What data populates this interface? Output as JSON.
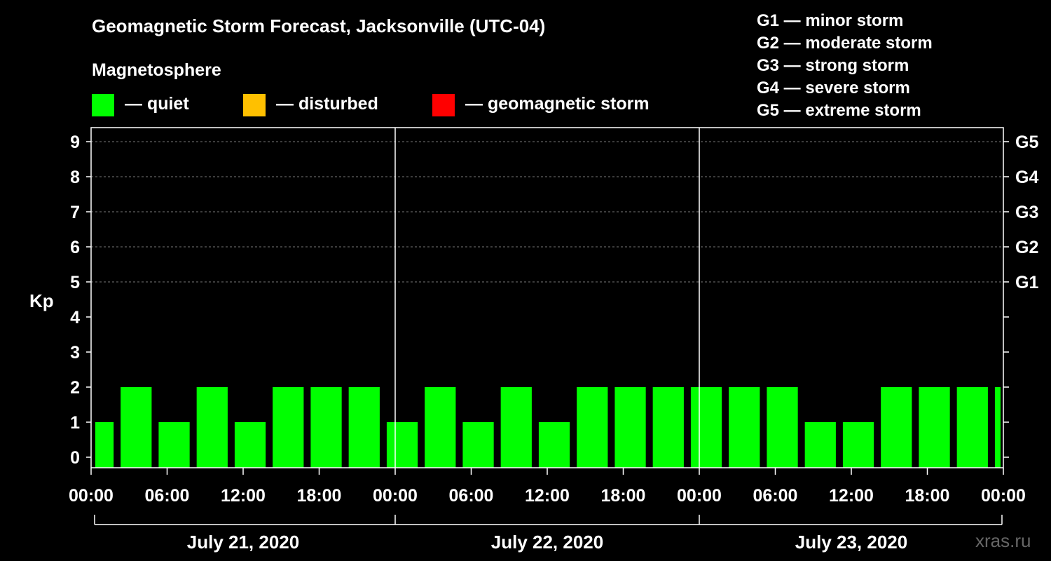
{
  "chart_data": {
    "type": "bar",
    "title": "Geomagnetic Storm Forecast, Jacksonville (UTC-04)",
    "ylabel": "Kp",
    "ylim": [
      0,
      9
    ],
    "yticks": [
      "0",
      "1",
      "2",
      "3",
      "4",
      "5",
      "6",
      "7",
      "8",
      "9"
    ],
    "y_right_labels": [
      {
        "kp": 5,
        "label": "G1"
      },
      {
        "kp": 6,
        "label": "G2"
      },
      {
        "kp": 7,
        "label": "G3"
      },
      {
        "kp": 8,
        "label": "G4"
      },
      {
        "kp": 9,
        "label": "G5"
      }
    ],
    "x_range_hours": [
      0,
      72
    ],
    "xticks": [
      {
        "hour": 0,
        "label": "00:00"
      },
      {
        "hour": 6,
        "label": "06:00"
      },
      {
        "hour": 12,
        "label": "12:00"
      },
      {
        "hour": 18,
        "label": "18:00"
      },
      {
        "hour": 24,
        "label": "00:00"
      },
      {
        "hour": 30,
        "label": "06:00"
      },
      {
        "hour": 36,
        "label": "12:00"
      },
      {
        "hour": 42,
        "label": "18:00"
      },
      {
        "hour": 48,
        "label": "00:00"
      },
      {
        "hour": 54,
        "label": "06:00"
      },
      {
        "hour": 60,
        "label": "12:00"
      },
      {
        "hour": 66,
        "label": "18:00"
      },
      {
        "hour": 72,
        "label": "00:00"
      }
    ],
    "days": [
      {
        "label": "July 21, 2020",
        "start_hour": 0,
        "end_hour": 24
      },
      {
        "label": "July 22, 2020",
        "start_hour": 24,
        "end_hour": 48
      },
      {
        "label": "July 23, 2020",
        "start_hour": 48,
        "end_hour": 72
      }
    ],
    "bars": [
      {
        "start_hour": 0,
        "end_hour": 2,
        "kp": 1
      },
      {
        "start_hour": 2,
        "end_hour": 5,
        "kp": 2
      },
      {
        "start_hour": 5,
        "end_hour": 8,
        "kp": 1
      },
      {
        "start_hour": 8,
        "end_hour": 11,
        "kp": 2
      },
      {
        "start_hour": 11,
        "end_hour": 14,
        "kp": 1
      },
      {
        "start_hour": 14,
        "end_hour": 17,
        "kp": 2
      },
      {
        "start_hour": 17,
        "end_hour": 20,
        "kp": 2
      },
      {
        "start_hour": 20,
        "end_hour": 23,
        "kp": 2
      },
      {
        "start_hour": 23,
        "end_hour": 26,
        "kp": 1
      },
      {
        "start_hour": 26,
        "end_hour": 29,
        "kp": 2
      },
      {
        "start_hour": 29,
        "end_hour": 32,
        "kp": 1
      },
      {
        "start_hour": 32,
        "end_hour": 35,
        "kp": 2
      },
      {
        "start_hour": 35,
        "end_hour": 38,
        "kp": 1
      },
      {
        "start_hour": 38,
        "end_hour": 41,
        "kp": 2
      },
      {
        "start_hour": 41,
        "end_hour": 44,
        "kp": 2
      },
      {
        "start_hour": 44,
        "end_hour": 47,
        "kp": 2
      },
      {
        "start_hour": 47,
        "end_hour": 50,
        "kp": 2
      },
      {
        "start_hour": 50,
        "end_hour": 53,
        "kp": 2
      },
      {
        "start_hour": 53,
        "end_hour": 56,
        "kp": 2
      },
      {
        "start_hour": 56,
        "end_hour": 59,
        "kp": 1
      },
      {
        "start_hour": 59,
        "end_hour": 62,
        "kp": 1
      },
      {
        "start_hour": 62,
        "end_hour": 65,
        "kp": 2
      },
      {
        "start_hour": 65,
        "end_hour": 68,
        "kp": 2
      },
      {
        "start_hour": 68,
        "end_hour": 71,
        "kp": 2
      },
      {
        "start_hour": 71,
        "end_hour": 72,
        "kp": 2
      }
    ],
    "grid": true,
    "colors": {
      "quiet": "#00ff00",
      "disturbed": "#ffc000",
      "storm": "#ff0000"
    }
  },
  "legend": {
    "title": "Magnetosphere",
    "items": [
      {
        "label": "— quiet",
        "color": "#00ff00"
      },
      {
        "label": "— disturbed",
        "color": "#ffc000"
      },
      {
        "label": "— geomagnetic storm",
        "color": "#ff0000"
      }
    ]
  },
  "g_scale": [
    "G1 — minor storm",
    "G2 — moderate storm",
    "G3 — strong storm",
    "G4 — severe storm",
    "G5 — extreme storm"
  ],
  "watermark": "xras.ru"
}
